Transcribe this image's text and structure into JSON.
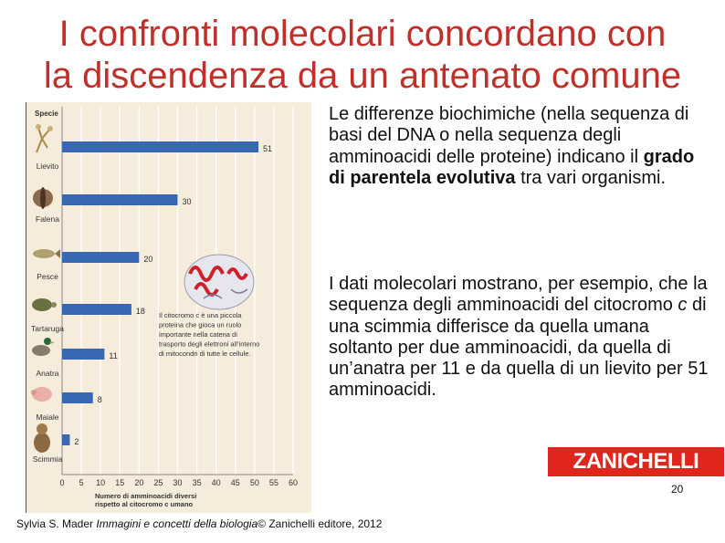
{
  "slide": {
    "title_line1": "I confronti molecolari concordano con",
    "title_line2": "la discendenza da un antenato comune",
    "paragraph1_a": "Le differenze biochimiche (nella sequenza di basi del DNA o nella sequenza degli amminoacidi delle proteine) indicano il ",
    "paragraph1_bold": "grado di parentela evolutiva",
    "paragraph1_b": " tra vari organismi.",
    "paragraph2_a": "I dati molecolari mostrano, per esempio, che la sequenza degli amminoacidi del citocromo ",
    "paragraph2_italic": "c",
    "paragraph2_b": " di una scimmia differisce da quella umana soltanto per due amminoacidi, da quella di un’anatra per 11 e da quella di un lievito per 51 amminoacidi.",
    "logo_text": "ZANICHELLI",
    "page_number": "20",
    "credit_author": "Sylvia S. Mader ",
    "credit_title": "Immagini e concetti della biologia",
    "credit_rest": "© Zanichelli editore, 2012",
    "accent_color": "#c0302a",
    "logo_color": "#e0261c",
    "bar_color": "#3a67b1"
  },
  "chart_data": {
    "type": "bar",
    "orientation": "horizontal",
    "title": "Specie",
    "categories": [
      "Lievito",
      "Falena",
      "Pesce",
      "Tartaruga",
      "Anatra",
      "Maiale",
      "Scimmia"
    ],
    "values": [
      51,
      30,
      20,
      18,
      11,
      8,
      2
    ],
    "xlim": [
      0,
      60
    ],
    "xticks": [
      0,
      5,
      10,
      15,
      20,
      25,
      30,
      35,
      40,
      45,
      50,
      55,
      60
    ],
    "xlabel": "Numero di amminoacidi diversi rispetto al citocromo c umano",
    "xlabel_line1": "Numero di amminoacidi diversi",
    "xlabel_line2": "rispetto al citocromo c umano",
    "grid": true,
    "annotation_lines": [
      "Il citocromo c è una piccola",
      "proteina che gioca un ruolo",
      "importante nella catena di",
      "trasporto degli elettroni all’interno",
      "di mitocondri di tutte le cellule."
    ],
    "icons": [
      "yeast-icon",
      "moth-icon",
      "fish-icon",
      "turtle-icon",
      "duck-icon",
      "pig-icon",
      "monkey-icon"
    ]
  }
}
